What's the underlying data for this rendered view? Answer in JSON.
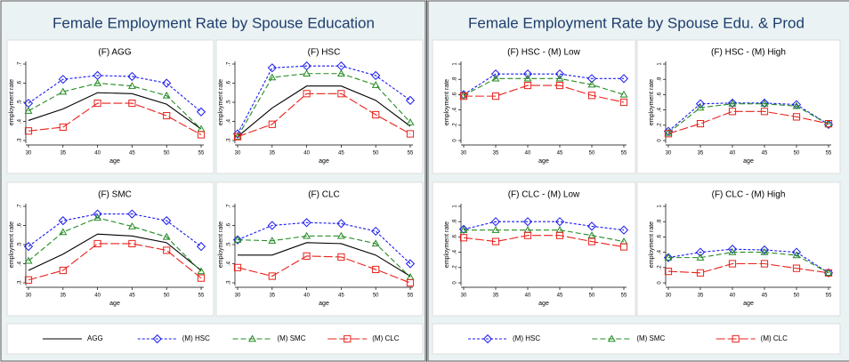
{
  "panels": [
    {
      "title": "Female Employment Rate by Spouse Education"
    },
    {
      "title": "Female Employment Rate by Spouse Edu. & Prod"
    }
  ],
  "chart_data": [
    {
      "type": "line",
      "title": "(F) AGG",
      "xlabel": "age",
      "ylabel": "employment rate",
      "x": [
        30,
        35,
        40,
        45,
        50,
        55
      ],
      "xlim": [
        30,
        55
      ],
      "xticks": [
        30,
        35,
        40,
        45,
        50,
        55
      ],
      "ylim": [
        0.3,
        0.7
      ],
      "yticks": [
        {
          "value": 0.3,
          "label": ".3"
        },
        {
          "value": 0.4,
          "label": ".4"
        },
        {
          "value": 0.5,
          "label": ".5"
        },
        {
          "value": 0.6,
          "label": ".6"
        },
        {
          "value": 0.7,
          "label": ".7"
        }
      ],
      "series": [
        {
          "name": "AGG",
          "color": "#000000",
          "dash": "none",
          "marker": "none",
          "values": [
            0.405,
            0.465,
            0.55,
            0.545,
            0.49,
            0.36
          ]
        },
        {
          "name": "(M) HSC",
          "color": "#1a1aee",
          "dash": "3,2",
          "marker": "diamond",
          "values": [
            0.495,
            0.62,
            0.64,
            0.635,
            0.6,
            0.45
          ]
        },
        {
          "name": "(M) SMC",
          "color": "#238b23",
          "dash": "6,3",
          "marker": "triangle",
          "values": [
            0.455,
            0.555,
            0.6,
            0.585,
            0.535,
            0.36
          ]
        },
        {
          "name": "(M) CLC",
          "color": "#e8221c",
          "dash": "10,3",
          "marker": "square",
          "values": [
            0.35,
            0.37,
            0.495,
            0.495,
            0.43,
            0.33
          ]
        }
      ]
    },
    {
      "type": "line",
      "title": "(F) HSC",
      "xlabel": "age",
      "ylabel": "employment rate",
      "x": [
        30,
        35,
        40,
        45,
        50,
        55
      ],
      "xlim": [
        30,
        55
      ],
      "xticks": [
        30,
        35,
        40,
        45,
        50,
        55
      ],
      "ylim": [
        0.3,
        0.7
      ],
      "yticks": [
        {
          "value": 0.3,
          "label": ".3"
        },
        {
          "value": 0.4,
          "label": ".4"
        },
        {
          "value": 0.5,
          "label": ".5"
        },
        {
          "value": 0.6,
          "label": ".6"
        },
        {
          "value": 0.7,
          "label": ".7"
        }
      ],
      "series": [
        {
          "name": "AGG",
          "color": "#000000",
          "dash": "none",
          "marker": "none",
          "values": [
            0.32,
            0.47,
            0.585,
            0.585,
            0.51,
            0.375
          ]
        },
        {
          "name": "(M) HSC",
          "color": "#1a1aee",
          "dash": "3,2",
          "marker": "diamond",
          "values": [
            0.335,
            0.68,
            0.69,
            0.69,
            0.64,
            0.51
          ]
        },
        {
          "name": "(M) SMC",
          "color": "#238b23",
          "dash": "6,3",
          "marker": "triangle",
          "values": [
            0.32,
            0.63,
            0.65,
            0.65,
            0.59,
            0.395
          ]
        },
        {
          "name": "(M) CLC",
          "color": "#e8221c",
          "dash": "10,3",
          "marker": "square",
          "values": [
            0.32,
            0.385,
            0.545,
            0.545,
            0.435,
            0.335
          ]
        }
      ]
    },
    {
      "type": "line",
      "title": "(F) SMC",
      "xlabel": "age",
      "ylabel": "employment rate",
      "x": [
        30,
        35,
        40,
        45,
        50,
        55
      ],
      "xlim": [
        30,
        55
      ],
      "xticks": [
        30,
        35,
        40,
        45,
        50,
        55
      ],
      "ylim": [
        0.3,
        0.7
      ],
      "yticks": [
        {
          "value": 0.3,
          "label": ".3"
        },
        {
          "value": 0.4,
          "label": ".4"
        },
        {
          "value": 0.5,
          "label": ".5"
        },
        {
          "value": 0.6,
          "label": ".6"
        },
        {
          "value": 0.7,
          "label": ".7"
        }
      ],
      "series": [
        {
          "name": "AGG",
          "color": "#000000",
          "dash": "none",
          "marker": "none",
          "values": [
            0.365,
            0.45,
            0.555,
            0.545,
            0.51,
            0.365
          ]
        },
        {
          "name": "(M) HSC",
          "color": "#1a1aee",
          "dash": "3,2",
          "marker": "diamond",
          "values": [
            0.49,
            0.625,
            0.66,
            0.66,
            0.625,
            0.49
          ]
        },
        {
          "name": "(M) SMC",
          "color": "#238b23",
          "dash": "6,3",
          "marker": "triangle",
          "values": [
            0.415,
            0.565,
            0.64,
            0.595,
            0.54,
            0.36
          ]
        },
        {
          "name": "(M) CLC",
          "color": "#e8221c",
          "dash": "10,3",
          "marker": "square",
          "values": [
            0.315,
            0.365,
            0.505,
            0.505,
            0.47,
            0.325
          ]
        }
      ]
    },
    {
      "type": "line",
      "title": "(F) CLC",
      "xlabel": "age",
      "ylabel": "employment rate",
      "x": [
        30,
        35,
        40,
        45,
        50,
        55
      ],
      "xlim": [
        30,
        55
      ],
      "xticks": [
        30,
        35,
        40,
        45,
        50,
        55
      ],
      "ylim": [
        0.3,
        0.7
      ],
      "yticks": [
        {
          "value": 0.3,
          "label": ".3"
        },
        {
          "value": 0.4,
          "label": ".4"
        },
        {
          "value": 0.5,
          "label": ".5"
        },
        {
          "value": 0.6,
          "label": ".6"
        },
        {
          "value": 0.7,
          "label": ".7"
        }
      ],
      "series": [
        {
          "name": "AGG",
          "color": "#000000",
          "dash": "none",
          "marker": "none",
          "values": [
            0.445,
            0.445,
            0.51,
            0.505,
            0.445,
            0.335
          ]
        },
        {
          "name": "(M) HSC",
          "color": "#1a1aee",
          "dash": "3,2",
          "marker": "diamond",
          "values": [
            0.525,
            0.6,
            0.615,
            0.61,
            0.57,
            0.4
          ]
        },
        {
          "name": "(M) SMC",
          "color": "#238b23",
          "dash": "6,3",
          "marker": "triangle",
          "values": [
            0.525,
            0.52,
            0.545,
            0.545,
            0.505,
            0.33
          ]
        },
        {
          "name": "(M) CLC",
          "color": "#e8221c",
          "dash": "10,3",
          "marker": "square",
          "values": [
            0.38,
            0.335,
            0.44,
            0.435,
            0.37,
            0.3
          ]
        }
      ]
    },
    {
      "type": "line",
      "title": "(F) HSC -  (M) Low",
      "xlabel": "age",
      "ylabel": "employment rate",
      "x": [
        30,
        35,
        40,
        45,
        50,
        55
      ],
      "xlim": [
        30,
        55
      ],
      "xticks": [
        30,
        35,
        40,
        45,
        50,
        55
      ],
      "ylim": [
        0,
        1
      ],
      "yticks": [
        0,
        {
          "value": 0.2,
          "label": ".2"
        },
        {
          "value": 0.4,
          "label": ".4"
        },
        {
          "value": 0.6,
          "label": ".6"
        },
        {
          "value": 0.8,
          "label": ".8"
        },
        1
      ],
      "series": [
        {
          "name": "(M) HSC",
          "color": "#1a1aee",
          "dash": "3,2",
          "marker": "diamond",
          "values": [
            0.6,
            0.87,
            0.87,
            0.87,
            0.81,
            0.81
          ]
        },
        {
          "name": "(M) SMC",
          "color": "#238b23",
          "dash": "6,3",
          "marker": "triangle",
          "values": [
            0.59,
            0.81,
            0.81,
            0.81,
            0.73,
            0.6
          ]
        },
        {
          "name": "(M) CLC",
          "color": "#e8221c",
          "dash": "10,3",
          "marker": "square",
          "values": [
            0.58,
            0.58,
            0.72,
            0.72,
            0.59,
            0.5
          ]
        }
      ]
    },
    {
      "type": "line",
      "title": "(F) HSC -  (M) High",
      "xlabel": "age",
      "ylabel": "employment rate",
      "x": [
        30,
        35,
        40,
        45,
        50,
        55
      ],
      "xlim": [
        30,
        55
      ],
      "xticks": [
        30,
        35,
        40,
        45,
        50,
        55
      ],
      "ylim": [
        0,
        1
      ],
      "yticks": [
        0,
        {
          "value": 0.2,
          "label": ".2"
        },
        {
          "value": 0.4,
          "label": ".4"
        },
        {
          "value": 0.6,
          "label": ".6"
        },
        {
          "value": 0.8,
          "label": ".8"
        },
        1
      ],
      "series": [
        {
          "name": "(M) HSC",
          "color": "#1a1aee",
          "dash": "3,2",
          "marker": "diamond",
          "values": [
            0.12,
            0.48,
            0.49,
            0.49,
            0.47,
            0.21
          ]
        },
        {
          "name": "(M) SMC",
          "color": "#238b23",
          "dash": "6,3",
          "marker": "triangle",
          "values": [
            0.1,
            0.43,
            0.48,
            0.48,
            0.45,
            0.21
          ]
        },
        {
          "name": "(M) CLC",
          "color": "#e8221c",
          "dash": "10,3",
          "marker": "square",
          "values": [
            0.09,
            0.22,
            0.38,
            0.38,
            0.31,
            0.22
          ]
        }
      ]
    },
    {
      "type": "line",
      "title": "(F) CLC -  (M) Low",
      "xlabel": "age",
      "ylabel": "employment rate",
      "x": [
        30,
        35,
        40,
        45,
        50,
        55
      ],
      "xlim": [
        30,
        55
      ],
      "xticks": [
        30,
        35,
        40,
        45,
        50,
        55
      ],
      "ylim": [
        0,
        1
      ],
      "yticks": [
        0,
        {
          "value": 0.2,
          "label": ".2"
        },
        {
          "value": 0.4,
          "label": ".4"
        },
        {
          "value": 0.6,
          "label": ".6"
        },
        {
          "value": 0.8,
          "label": ".8"
        },
        1
      ],
      "series": [
        {
          "name": "(M) HSC",
          "color": "#1a1aee",
          "dash": "3,2",
          "marker": "diamond",
          "values": [
            0.7,
            0.8,
            0.8,
            0.8,
            0.74,
            0.69
          ]
        },
        {
          "name": "(M) SMC",
          "color": "#238b23",
          "dash": "6,3",
          "marker": "triangle",
          "values": [
            0.69,
            0.69,
            0.69,
            0.69,
            0.62,
            0.54
          ]
        },
        {
          "name": "(M) CLC",
          "color": "#e8221c",
          "dash": "10,3",
          "marker": "square",
          "values": [
            0.59,
            0.54,
            0.62,
            0.62,
            0.54,
            0.47
          ]
        }
      ]
    },
    {
      "type": "line",
      "title": "(F) CLC -  (M) High",
      "xlabel": "age",
      "ylabel": "employment rate",
      "x": [
        30,
        35,
        40,
        45,
        50,
        55
      ],
      "xlim": [
        30,
        55
      ],
      "xticks": [
        30,
        35,
        40,
        45,
        50,
        55
      ],
      "ylim": [
        0,
        1
      ],
      "yticks": [
        0,
        {
          "value": 0.2,
          "label": ".2"
        },
        {
          "value": 0.4,
          "label": ".4"
        },
        {
          "value": 0.6,
          "label": ".6"
        },
        {
          "value": 0.8,
          "label": ".8"
        },
        1
      ],
      "series": [
        {
          "name": "(M) HSC",
          "color": "#1a1aee",
          "dash": "3,2",
          "marker": "diamond",
          "values": [
            0.33,
            0.4,
            0.44,
            0.43,
            0.4,
            0.13
          ]
        },
        {
          "name": "(M) SMC",
          "color": "#238b23",
          "dash": "6,3",
          "marker": "triangle",
          "values": [
            0.33,
            0.33,
            0.4,
            0.4,
            0.36,
            0.13
          ]
        },
        {
          "name": "(M) CLC",
          "color": "#e8221c",
          "dash": "10,3",
          "marker": "square",
          "values": [
            0.15,
            0.13,
            0.25,
            0.25,
            0.19,
            0.13
          ]
        }
      ]
    }
  ]
}
